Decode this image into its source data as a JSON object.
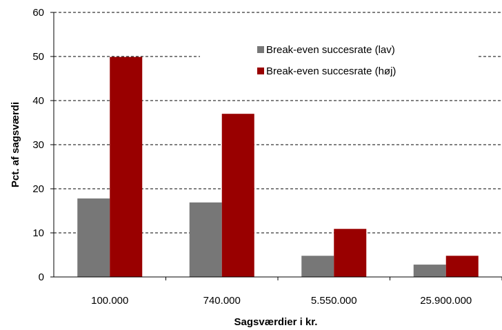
{
  "chart_data": {
    "type": "bar",
    "title": "",
    "xlabel": "Sagsværdier i kr.",
    "ylabel": "Pct. af sagsværdi",
    "categories": [
      "100.000",
      "740.000",
      "5.550.000",
      "25.900.000"
    ],
    "series": [
      {
        "name": "Break-even succesrate (lav)",
        "values": [
          17.8,
          16.9,
          4.8,
          2.8
        ],
        "color": "#777777"
      },
      {
        "name": "Break-even succesrate (høj)",
        "values": [
          49.9,
          37.0,
          10.9,
          4.8
        ],
        "color": "#990000"
      }
    ],
    "ylim": [
      0,
      60
    ],
    "yticks": [
      "0",
      "10",
      "20",
      "30",
      "40",
      "50",
      "60"
    ],
    "grid": true,
    "legend_position": "top-right"
  }
}
